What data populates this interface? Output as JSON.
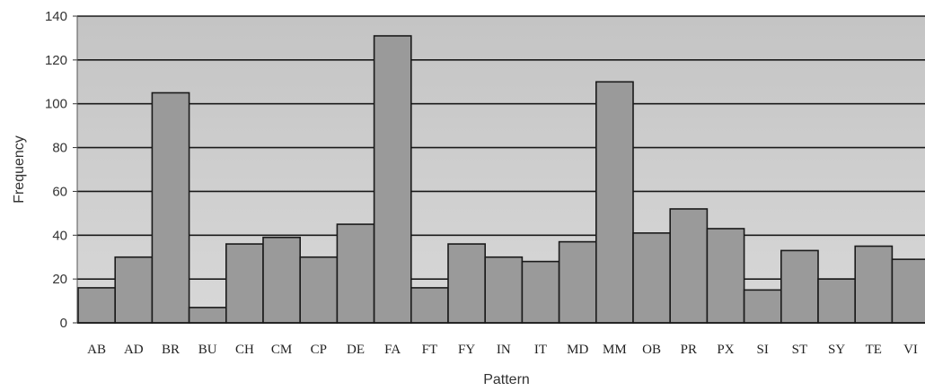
{
  "chart_data": {
    "type": "bar",
    "xlabel": "Pattern",
    "ylabel": "Frequency",
    "ylim": [
      0,
      140
    ],
    "yticks": [
      0,
      20,
      40,
      60,
      80,
      100,
      120,
      140
    ],
    "grid": true,
    "categories": [
      "AB",
      "AD",
      "BR",
      "BU",
      "CH",
      "CM",
      "CP",
      "DE",
      "FA",
      "FT",
      "FY",
      "IN",
      "IT",
      "MD",
      "MM",
      "OB",
      "PR",
      "PX",
      "SI",
      "ST",
      "SY",
      "TE",
      "VI"
    ],
    "values": [
      16,
      30,
      105,
      7,
      36,
      39,
      30,
      45,
      131,
      16,
      36,
      30,
      28,
      37,
      110,
      41,
      52,
      43,
      15,
      33,
      20,
      35,
      29
    ],
    "colors": {
      "bar": "#9a9a9a",
      "bar_edge": "#1a1a1a",
      "plot_background": "#cfcfcf",
      "gridline": "#1a1a1a"
    }
  }
}
